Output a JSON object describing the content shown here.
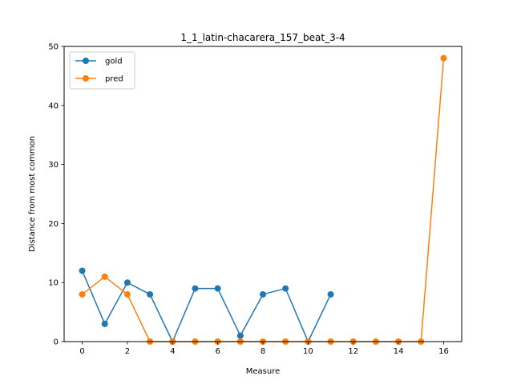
{
  "chart_data": {
    "type": "line",
    "title": "1_1_latin-chacarera_157_beat_3-4",
    "xlabel": "Measure",
    "ylabel": "Distance from most common",
    "xlim": [
      -0.8,
      16.8
    ],
    "ylim": [
      0,
      50
    ],
    "xticks": [
      0,
      2,
      4,
      6,
      8,
      10,
      12,
      14,
      16
    ],
    "yticks": [
      0,
      10,
      20,
      30,
      40,
      50
    ],
    "grid": false,
    "legend": "top-left",
    "series": [
      {
        "name": "gold",
        "color": "#1f77b4",
        "x": [
          0,
          1,
          2,
          3,
          4,
          5,
          6,
          7,
          8,
          9,
          10,
          11
        ],
        "y": [
          12,
          3,
          10,
          8,
          0,
          9,
          9,
          1,
          8,
          9,
          0,
          8
        ]
      },
      {
        "name": "pred",
        "color": "#ff7f0e",
        "x": [
          0,
          1,
          2,
          3,
          4,
          5,
          6,
          7,
          8,
          9,
          10,
          11,
          12,
          13,
          14,
          15,
          16
        ],
        "y": [
          8,
          11,
          8,
          0,
          0,
          0,
          0,
          0,
          0,
          0,
          0,
          0,
          0,
          0,
          0,
          0,
          48
        ]
      }
    ]
  }
}
